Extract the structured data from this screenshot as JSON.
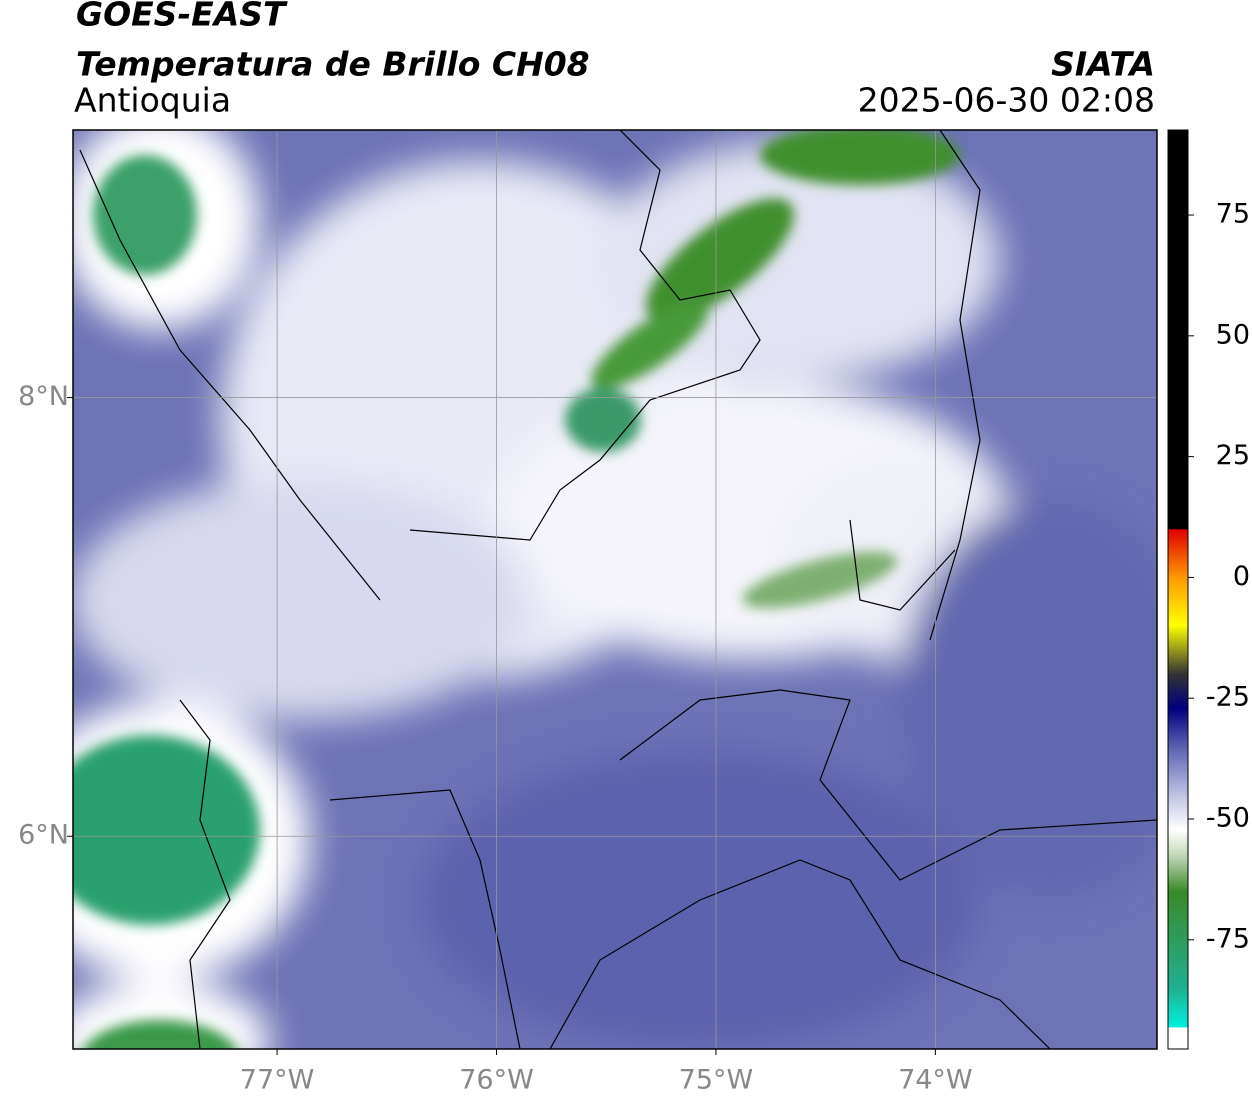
{
  "header": {
    "satellite": "GOES-EAST",
    "product": "Temperatura de Brillo CH08",
    "region": "Antioquia",
    "source": "SIATA",
    "datetime": "2025-06-30 02:08"
  },
  "map": {
    "xlim": [
      -77.93,
      -72.99
    ],
    "ylim": [
      5.03,
      9.22
    ],
    "xticks": [
      {
        "value": -77,
        "label": "77°W"
      },
      {
        "value": -76,
        "label": "76°W"
      },
      {
        "value": -75,
        "label": "75°W"
      },
      {
        "value": -74,
        "label": "74°W"
      }
    ],
    "yticks": [
      {
        "value": 6,
        "label": "6°N"
      },
      {
        "value": 8,
        "label": "8°N"
      }
    ],
    "grid": true
  },
  "colorbar": {
    "lim": [
      -97.6,
      92.6
    ],
    "ticks": [
      -75,
      -50,
      -25,
      0,
      25,
      50,
      75
    ]
  }
}
